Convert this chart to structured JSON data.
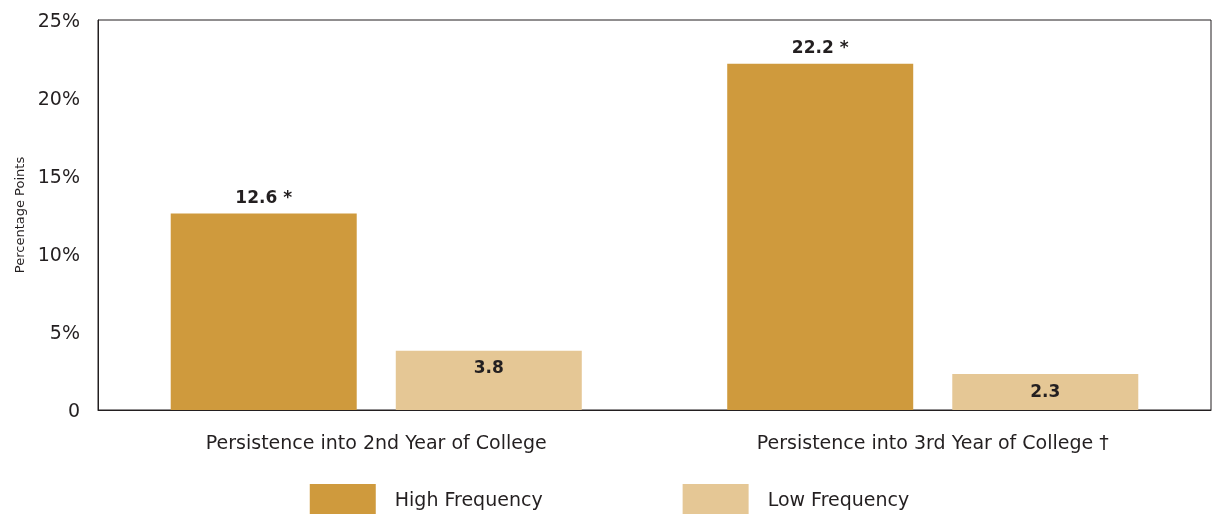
{
  "chart_data": {
    "type": "bar",
    "ylabel": "Percentage Points",
    "categories": [
      "Persistence into 2nd Year of College",
      "Persistence into 3rd Year of College †"
    ],
    "series": [
      {
        "name": "High Frequency",
        "color": "#cf9a3d",
        "values": [
          12.6,
          22.2
        ],
        "value_labels": [
          "12.6 *",
          "22.2 *"
        ]
      },
      {
        "name": "Low Frequency",
        "color": "#e5c795",
        "values": [
          3.8,
          2.3
        ],
        "value_labels": [
          "3.8",
          "2.3"
        ]
      }
    ],
    "ylim": [
      0,
      25
    ],
    "yticks": [
      {
        "value": 0,
        "label": "0"
      },
      {
        "value": 5,
        "label": "5%"
      },
      {
        "value": 10,
        "label": "10%"
      },
      {
        "value": 15,
        "label": "15%"
      },
      {
        "value": 20,
        "label": "20%"
      },
      {
        "value": 25,
        "label": "25%"
      }
    ],
    "grid": false,
    "legend": "bottom"
  }
}
